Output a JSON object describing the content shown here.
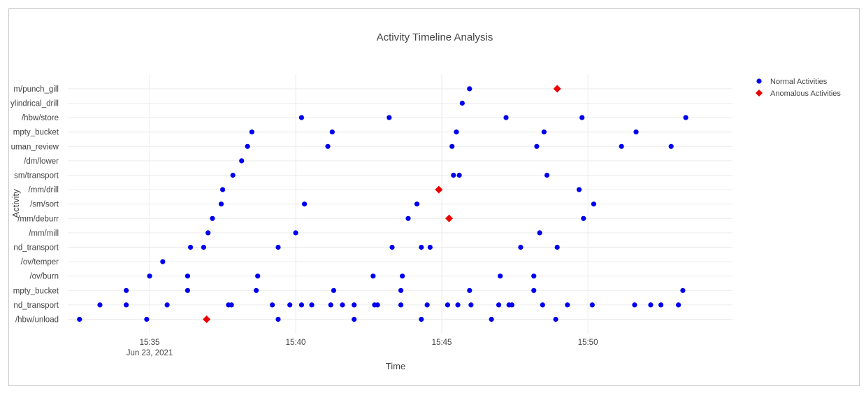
{
  "chart_data": {
    "type": "scatter",
    "title": "Activity Timeline Analysis",
    "xlabel": "Time",
    "ylabel": "Activity",
    "x_tick_labels": [
      "15:35",
      "15:40",
      "15:45",
      "15:50"
    ],
    "x_tick_values": [
      35,
      40,
      45,
      50
    ],
    "x_date_label": "Jun 23, 2021",
    "xlim": [
      32.2,
      54.95
    ],
    "categories": [
      "/hbw/unload",
      "/vgr/pick_up_and_transport",
      "/vgr/pick_up_empty_bucket",
      "/ov/burn",
      "/ov/temper",
      "/vgr/pick_up_and_transport",
      "/mm/mill",
      "/mm/deburr",
      "/sm/sort",
      "/mm/drill",
      "/sm/transport",
      "/dm/lower",
      "/wtg/human_review",
      "/vgr/return_empty_bucket",
      "/hbw/store",
      "/mm/cylindrical_drill",
      "/mm/punch_gill"
    ],
    "y_tick_labels": [
      "/hbw/unload",
      "nd_transport",
      "mpty_bucket",
      "/ov/burn",
      "/ov/temper",
      "nd_transport",
      "/mm/mill",
      "/mm/deburr",
      "/sm/sort",
      "/mm/drill",
      "sm/transport",
      "/dm/lower",
      "uman_review",
      "mpty_bucket",
      "/hbw/store",
      "ylindrical_drill",
      "m/punch_gill"
    ],
    "legend_position": "top-right",
    "grid": true,
    "series": [
      {
        "name": "Normal Activities",
        "color": "#0000ee",
        "marker": "circle",
        "points": [
          [
            32.6,
            0
          ],
          [
            34.9,
            0
          ],
          [
            39.4,
            0
          ],
          [
            42.0,
            0
          ],
          [
            44.3,
            0
          ],
          [
            46.7,
            0
          ],
          [
            48.9,
            0
          ],
          [
            33.3,
            1
          ],
          [
            34.2,
            1
          ],
          [
            35.6,
            1
          ],
          [
            37.7,
            1
          ],
          [
            37.8,
            1
          ],
          [
            39.2,
            1
          ],
          [
            39.8,
            1
          ],
          [
            40.2,
            1
          ],
          [
            40.55,
            1
          ],
          [
            41.2,
            1
          ],
          [
            41.6,
            1
          ],
          [
            42.0,
            1
          ],
          [
            42.7,
            1
          ],
          [
            42.8,
            1
          ],
          [
            43.6,
            1
          ],
          [
            44.5,
            1
          ],
          [
            45.2,
            1
          ],
          [
            45.55,
            1
          ],
          [
            46.0,
            1
          ],
          [
            46.95,
            1
          ],
          [
            47.3,
            1
          ],
          [
            47.4,
            1
          ],
          [
            48.45,
            1
          ],
          [
            49.3,
            1
          ],
          [
            50.15,
            1
          ],
          [
            51.6,
            1
          ],
          [
            52.15,
            1
          ],
          [
            52.5,
            1
          ],
          [
            53.1,
            1
          ],
          [
            34.2,
            2
          ],
          [
            36.3,
            2
          ],
          [
            38.65,
            2
          ],
          [
            41.3,
            2
          ],
          [
            43.6,
            2
          ],
          [
            45.95,
            2
          ],
          [
            48.15,
            2
          ],
          [
            53.25,
            2
          ],
          [
            35.0,
            3
          ],
          [
            36.3,
            3
          ],
          [
            38.7,
            3
          ],
          [
            42.65,
            3
          ],
          [
            43.65,
            3
          ],
          [
            47.0,
            3
          ],
          [
            48.15,
            3
          ],
          [
            35.45,
            4
          ],
          [
            36.4,
            5
          ],
          [
            36.85,
            5
          ],
          [
            39.4,
            5
          ],
          [
            43.3,
            5
          ],
          [
            44.3,
            5
          ],
          [
            44.6,
            5
          ],
          [
            47.7,
            5
          ],
          [
            48.95,
            5
          ],
          [
            37.0,
            6
          ],
          [
            40.0,
            6
          ],
          [
            48.35,
            6
          ],
          [
            37.15,
            7
          ],
          [
            43.85,
            7
          ],
          [
            49.85,
            7
          ],
          [
            37.45,
            8
          ],
          [
            40.3,
            8
          ],
          [
            44.15,
            8
          ],
          [
            50.2,
            8
          ],
          [
            37.5,
            9
          ],
          [
            49.7,
            9
          ],
          [
            37.85,
            10
          ],
          [
            45.4,
            10
          ],
          [
            45.6,
            10
          ],
          [
            48.6,
            10
          ],
          [
            38.15,
            11
          ],
          [
            38.35,
            12
          ],
          [
            41.1,
            12
          ],
          [
            45.35,
            12
          ],
          [
            48.25,
            12
          ],
          [
            51.15,
            12
          ],
          [
            52.85,
            12
          ],
          [
            38.5,
            13
          ],
          [
            41.25,
            13
          ],
          [
            45.5,
            13
          ],
          [
            48.5,
            13
          ],
          [
            51.65,
            13
          ],
          [
            40.2,
            14
          ],
          [
            43.2,
            14
          ],
          [
            47.2,
            14
          ],
          [
            49.8,
            14
          ],
          [
            53.35,
            14
          ],
          [
            45.7,
            15
          ],
          [
            45.95,
            16
          ]
        ]
      },
      {
        "name": "Anomalous Activities",
        "color": "#ee0000",
        "marker": "diamond",
        "points": [
          [
            36.95,
            0
          ],
          [
            45.25,
            7
          ],
          [
            44.9,
            9
          ],
          [
            48.95,
            16
          ]
        ]
      }
    ]
  }
}
